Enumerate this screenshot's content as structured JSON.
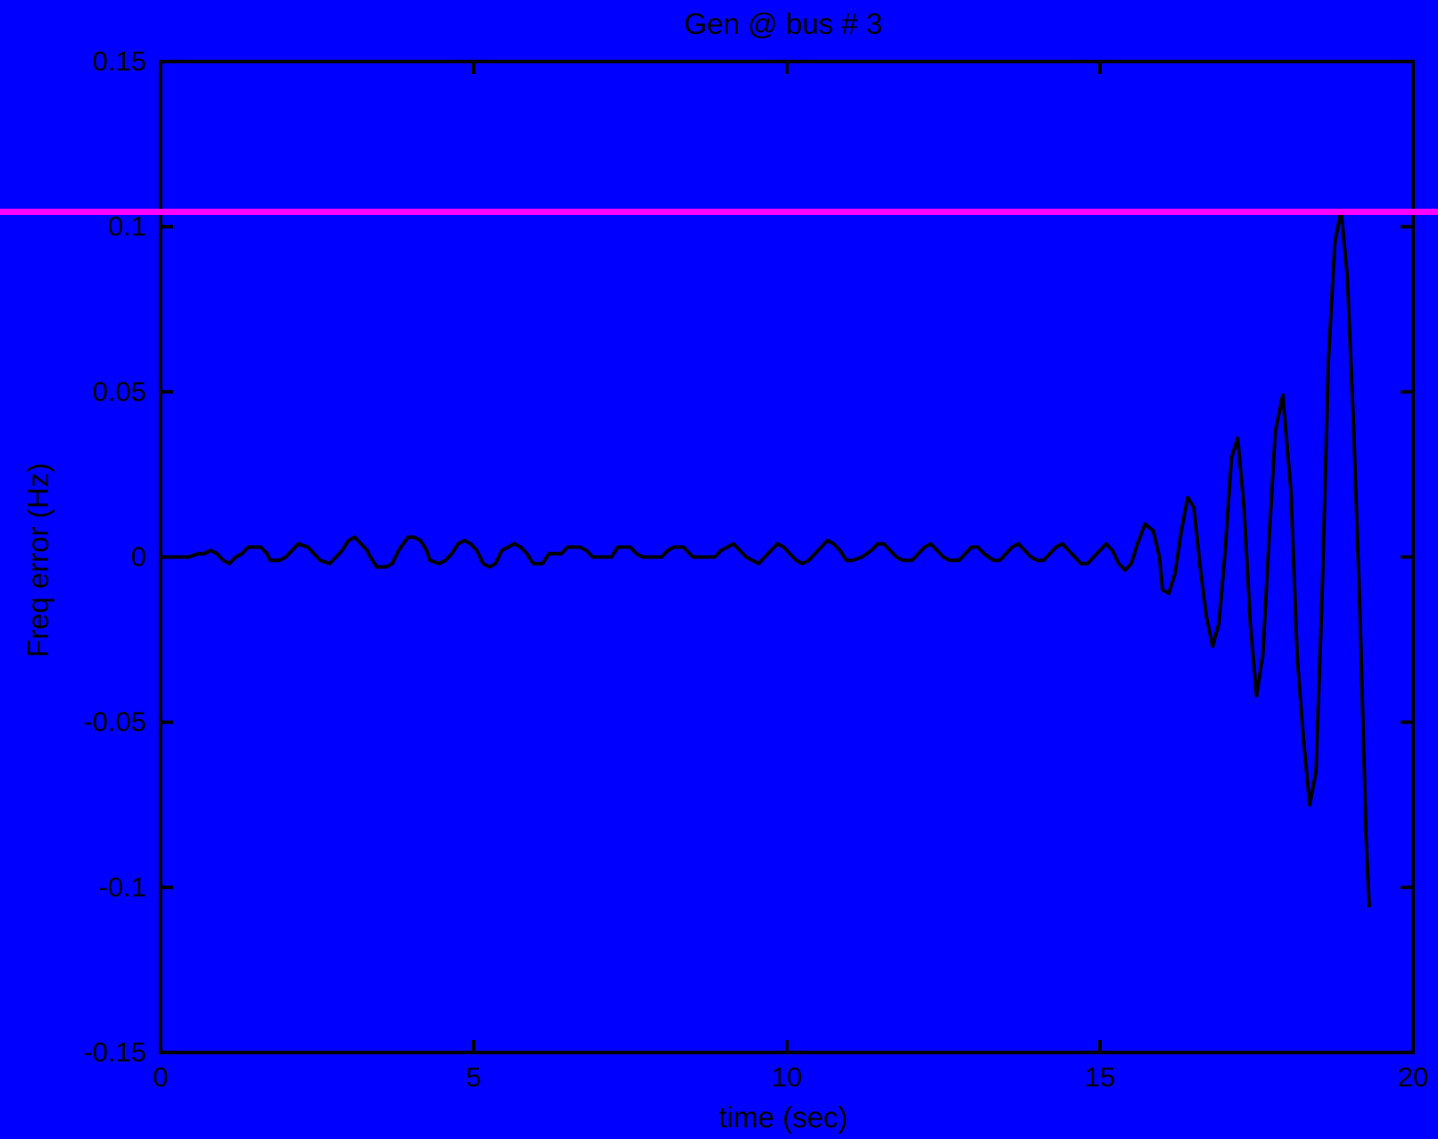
{
  "chart_data": {
    "type": "line",
    "title": "Gen @ bus # 3",
    "xlabel": "time (sec)",
    "ylabel": "Freq error (Hz)",
    "xlim": [
      0,
      20
    ],
    "ylim": [
      -0.15,
      0.15
    ],
    "x_ticks": [
      0,
      5,
      10,
      15,
      20
    ],
    "x_tick_labels": [
      "0",
      "5",
      "10",
      "15",
      "20"
    ],
    "y_ticks": [
      0.15,
      0.1,
      0.05,
      0,
      -0.05,
      -0.1,
      -0.15
    ],
    "y_tick_labels": [
      "0.15",
      "0.1",
      "0.05",
      "0",
      "-0.05",
      "-0.1",
      "-0.15"
    ],
    "grid": false,
    "colors": {
      "background": "#0000ff",
      "line": "#000000",
      "threshold": "#ff00ff"
    },
    "threshold_line": {
      "y": 0.1045
    },
    "series": [
      {
        "color": "#000000",
        "points": [
          [
            0,
            0
          ],
          [
            0.45,
            0
          ],
          [
            0.6,
            0.001
          ],
          [
            0.7,
            0.001
          ],
          [
            0.8,
            0.002
          ],
          [
            0.9,
            0.001
          ],
          [
            1.0,
            -0.001
          ],
          [
            1.1,
            -0.002
          ],
          [
            1.2,
            0
          ],
          [
            1.3,
            0.001
          ],
          [
            1.4,
            0.003
          ],
          [
            1.6,
            0.003
          ],
          [
            1.7,
            0.001
          ],
          [
            1.75,
            -0.001
          ],
          [
            1.9,
            -0.001
          ],
          [
            2.0,
            0
          ],
          [
            2.1,
            0.002
          ],
          [
            2.2,
            0.004
          ],
          [
            2.35,
            0.003
          ],
          [
            2.45,
            0.001
          ],
          [
            2.55,
            -0.001
          ],
          [
            2.7,
            -0.002
          ],
          [
            2.8,
            0
          ],
          [
            2.9,
            0.002
          ],
          [
            3.0,
            0.005
          ],
          [
            3.1,
            0.006
          ],
          [
            3.2,
            0.004
          ],
          [
            3.3,
            0.002
          ],
          [
            3.35,
            0
          ],
          [
            3.45,
            -0.003
          ],
          [
            3.6,
            -0.003
          ],
          [
            3.7,
            -0.002
          ],
          [
            3.8,
            0.002
          ],
          [
            3.95,
            0.006
          ],
          [
            4.05,
            0.006
          ],
          [
            4.15,
            0.005
          ],
          [
            4.25,
            0.002
          ],
          [
            4.3,
            -0.001
          ],
          [
            4.45,
            -0.002
          ],
          [
            4.55,
            -0.001
          ],
          [
            4.65,
            0.001
          ],
          [
            4.75,
            0.004
          ],
          [
            4.85,
            0.005
          ],
          [
            4.95,
            0.004
          ],
          [
            5.05,
            0.002
          ],
          [
            5.15,
            -0.002
          ],
          [
            5.25,
            -0.003
          ],
          [
            5.35,
            -0.002
          ],
          [
            5.45,
            0.002
          ],
          [
            5.55,
            0.003
          ],
          [
            5.65,
            0.004
          ],
          [
            5.75,
            0.003
          ],
          [
            5.85,
            0.001
          ],
          [
            5.95,
            -0.002
          ],
          [
            6.1,
            -0.002
          ],
          [
            6.2,
            0.001
          ],
          [
            6.4,
            0.001
          ],
          [
            6.5,
            0.003
          ],
          [
            6.7,
            0.003
          ],
          [
            6.8,
            0.002
          ],
          [
            6.9,
            0
          ],
          [
            7.2,
            0
          ],
          [
            7.3,
            0.003
          ],
          [
            7.5,
            0.003
          ],
          [
            7.6,
            0.001
          ],
          [
            7.7,
            0
          ],
          [
            8.0,
            0
          ],
          [
            8.1,
            0.002
          ],
          [
            8.2,
            0.003
          ],
          [
            8.35,
            0.003
          ],
          [
            8.45,
            0.001
          ],
          [
            8.5,
            0
          ],
          [
            8.85,
            0
          ],
          [
            8.95,
            0.002
          ],
          [
            9.05,
            0.003
          ],
          [
            9.15,
            0.004
          ],
          [
            9.25,
            0.002
          ],
          [
            9.35,
            0
          ],
          [
            9.45,
            -0.001
          ],
          [
            9.55,
            -0.002
          ],
          [
            9.65,
            0
          ],
          [
            9.75,
            0.002
          ],
          [
            9.85,
            0.004
          ],
          [
            9.95,
            0.003
          ],
          [
            10.05,
            0.001
          ],
          [
            10.15,
            -0.001
          ],
          [
            10.25,
            -0.002
          ],
          [
            10.35,
            -0.001
          ],
          [
            10.45,
            0.001
          ],
          [
            10.55,
            0.003
          ],
          [
            10.65,
            0.005
          ],
          [
            10.75,
            0.004
          ],
          [
            10.85,
            0.002
          ],
          [
            10.95,
            -0.001
          ],
          [
            11.05,
            -0.001
          ],
          [
            11.2,
            0
          ],
          [
            11.35,
            0.002
          ],
          [
            11.45,
            0.004
          ],
          [
            11.55,
            0.004
          ],
          [
            11.65,
            0.002
          ],
          [
            11.75,
            0
          ],
          [
            11.85,
            -0.001
          ],
          [
            12.0,
            -0.001
          ],
          [
            12.1,
            0.001
          ],
          [
            12.2,
            0.003
          ],
          [
            12.3,
            0.004
          ],
          [
            12.4,
            0.002
          ],
          [
            12.5,
            0
          ],
          [
            12.6,
            -0.001
          ],
          [
            12.75,
            -0.001
          ],
          [
            12.85,
            0.001
          ],
          [
            12.95,
            0.003
          ],
          [
            13.05,
            0.003
          ],
          [
            13.15,
            0.001
          ],
          [
            13.3,
            -0.001
          ],
          [
            13.4,
            -0.001
          ],
          [
            13.5,
            0.001
          ],
          [
            13.6,
            0.003
          ],
          [
            13.7,
            0.004
          ],
          [
            13.8,
            0.002
          ],
          [
            13.9,
            0
          ],
          [
            14.0,
            -0.001
          ],
          [
            14.1,
            -0.001
          ],
          [
            14.2,
            0.001
          ],
          [
            14.3,
            0.003
          ],
          [
            14.4,
            0.004
          ],
          [
            14.5,
            0.002
          ],
          [
            14.6,
            0
          ],
          [
            14.7,
            -0.002
          ],
          [
            14.8,
            -0.002
          ],
          [
            14.9,
            0
          ],
          [
            15.0,
            0.002
          ],
          [
            15.1,
            0.004
          ],
          [
            15.2,
            0.002
          ],
          [
            15.3,
            -0.002
          ],
          [
            15.4,
            -0.004
          ],
          [
            15.5,
            -0.002
          ],
          [
            15.6,
            0.004
          ],
          [
            15.72,
            0.01
          ],
          [
            15.85,
            0.008
          ],
          [
            15.95,
            0
          ],
          [
            16.0,
            -0.01
          ],
          [
            16.1,
            -0.011
          ],
          [
            16.2,
            -0.005
          ],
          [
            16.3,
            0.008
          ],
          [
            16.4,
            0.018
          ],
          [
            16.5,
            0.015
          ],
          [
            16.6,
            -0.003
          ],
          [
            16.7,
            -0.018
          ],
          [
            16.8,
            -0.027
          ],
          [
            16.9,
            -0.02
          ],
          [
            17.0,
            0.002
          ],
          [
            17.1,
            0.03
          ],
          [
            17.2,
            0.036
          ],
          [
            17.3,
            0.015
          ],
          [
            17.4,
            -0.02
          ],
          [
            17.5,
            -0.042
          ],
          [
            17.6,
            -0.03
          ],
          [
            17.7,
            0.005
          ],
          [
            17.8,
            0.038
          ],
          [
            17.92,
            0.049
          ],
          [
            18.05,
            0.02
          ],
          [
            18.15,
            -0.03
          ],
          [
            18.25,
            -0.055
          ],
          [
            18.35,
            -0.075
          ],
          [
            18.45,
            -0.065
          ],
          [
            18.55,
            -0.01
          ],
          [
            18.65,
            0.06
          ],
          [
            18.75,
            0.095
          ],
          [
            18.85,
            0.105
          ],
          [
            18.95,
            0.085
          ],
          [
            19.05,
            0.04
          ],
          [
            19.15,
            -0.015
          ],
          [
            19.25,
            -0.085
          ],
          [
            19.3,
            -0.106
          ]
        ]
      }
    ]
  }
}
